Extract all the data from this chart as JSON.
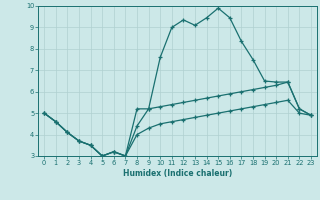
{
  "title": "",
  "xlabel": "Humidex (Indice chaleur)",
  "xlim": [
    -0.5,
    23.5
  ],
  "ylim": [
    3,
    10
  ],
  "background_color": "#cce8e8",
  "grid_color": "#b0d0d0",
  "line_color": "#1a7070",
  "series1_x": [
    0,
    1,
    2,
    3,
    4,
    5,
    6,
    7,
    8,
    9,
    10,
    11,
    12,
    13,
    14,
    15,
    16,
    17,
    18,
    19,
    20,
    21,
    22,
    23
  ],
  "series1_y": [
    5.0,
    4.6,
    4.1,
    3.7,
    3.5,
    3.0,
    3.2,
    3.0,
    4.0,
    4.3,
    4.5,
    4.6,
    4.7,
    4.8,
    4.9,
    5.0,
    5.1,
    5.2,
    5.3,
    5.4,
    5.5,
    5.6,
    5.0,
    4.9
  ],
  "series2_x": [
    0,
    1,
    2,
    3,
    4,
    5,
    6,
    7,
    8,
    9,
    10,
    11,
    12,
    13,
    14,
    15,
    16,
    17,
    18,
    19,
    20,
    21,
    22,
    23
  ],
  "series2_y": [
    5.0,
    4.6,
    4.1,
    3.7,
    3.5,
    3.0,
    3.2,
    3.0,
    4.4,
    5.2,
    5.3,
    5.4,
    5.5,
    5.6,
    5.7,
    5.8,
    5.9,
    6.0,
    6.1,
    6.2,
    6.3,
    6.45,
    5.2,
    4.9
  ],
  "series3_x": [
    0,
    1,
    2,
    3,
    4,
    5,
    6,
    7,
    8,
    9,
    10,
    11,
    12,
    13,
    14,
    15,
    16,
    17,
    18,
    19,
    20,
    21,
    22,
    23
  ],
  "series3_y": [
    5.0,
    4.6,
    4.1,
    3.7,
    3.5,
    3.0,
    3.2,
    3.0,
    5.2,
    5.2,
    7.6,
    9.0,
    9.35,
    9.1,
    9.45,
    9.9,
    9.45,
    8.35,
    7.5,
    6.5,
    6.45,
    6.45,
    5.2,
    4.9
  ],
  "xticks": [
    0,
    1,
    2,
    3,
    4,
    5,
    6,
    7,
    8,
    9,
    10,
    11,
    12,
    13,
    14,
    15,
    16,
    17,
    18,
    19,
    20,
    21,
    22,
    23
  ],
  "yticks": [
    3,
    4,
    5,
    6,
    7,
    8,
    9,
    10
  ]
}
